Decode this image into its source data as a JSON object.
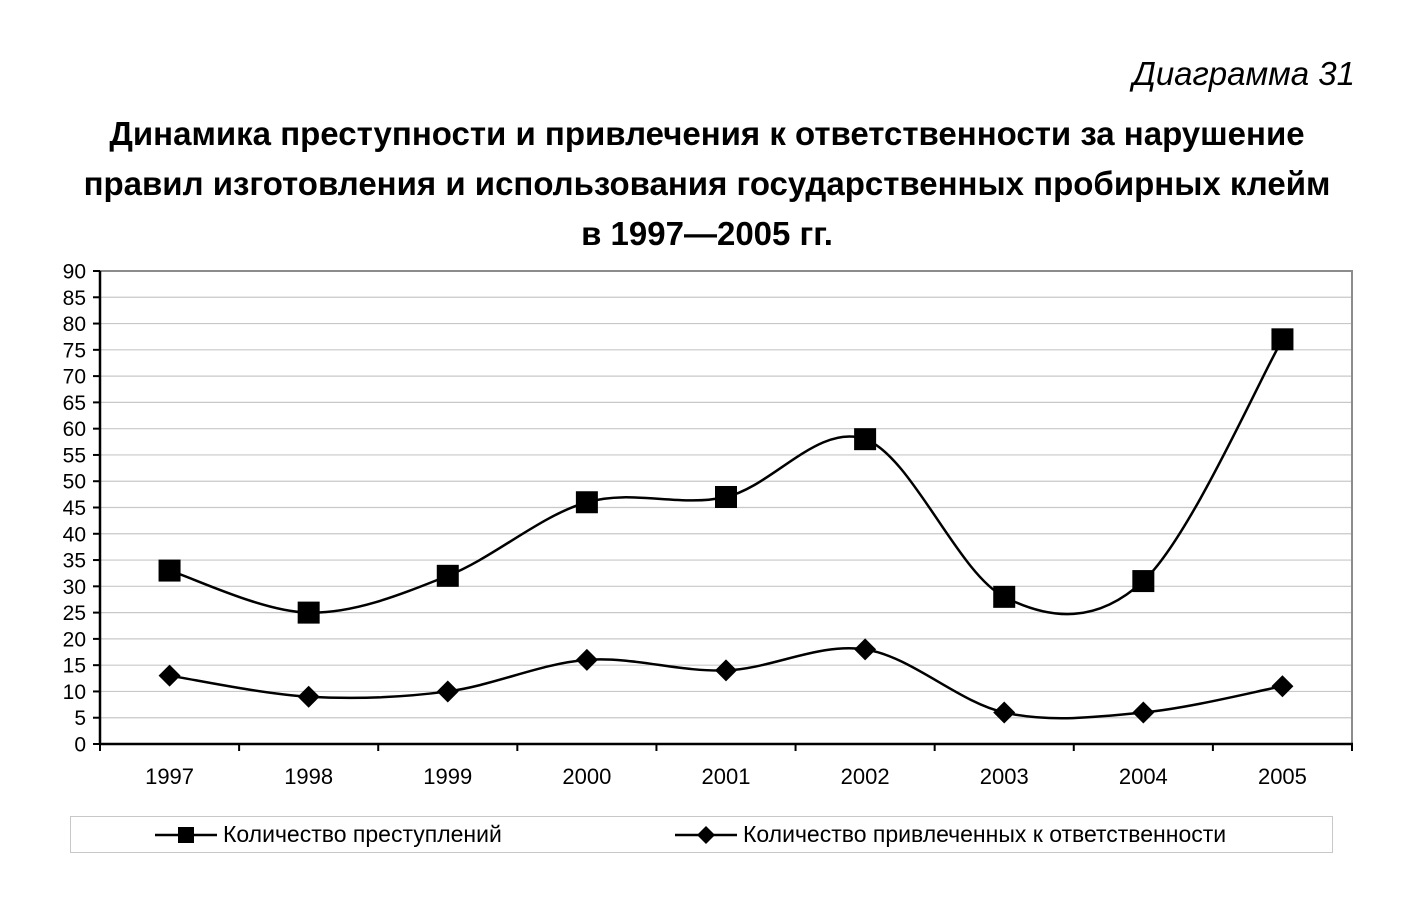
{
  "header": {
    "diagram_number": "Диаграмма 31"
  },
  "chart_data": {
    "type": "line",
    "title": "Динамика преступности и привлечения к ответственности за нарушение\nправил изготовления и использования государственных пробирных клейм\nв 1997—2005 гг.",
    "categories": [
      "1997",
      "1998",
      "1999",
      "2000",
      "2001",
      "2002",
      "2003",
      "2004",
      "2005"
    ],
    "series": [
      {
        "name": "Количество преступлений",
        "marker": "square",
        "color": "#000000",
        "values": [
          33,
          25,
          32,
          46,
          47,
          58,
          28,
          31,
          77
        ]
      },
      {
        "name": "Количество привлеченных к ответственности",
        "marker": "diamond",
        "color": "#000000",
        "values": [
          13,
          9,
          10,
          16,
          14,
          18,
          6,
          6,
          11
        ]
      }
    ],
    "ylim": [
      0,
      90
    ],
    "yticks": [
      0,
      5,
      10,
      15,
      20,
      25,
      30,
      35,
      40,
      45,
      50,
      55,
      60,
      65,
      70,
      75,
      80,
      85,
      90
    ],
    "grid": true,
    "smooth": true,
    "legend": "bottom"
  }
}
